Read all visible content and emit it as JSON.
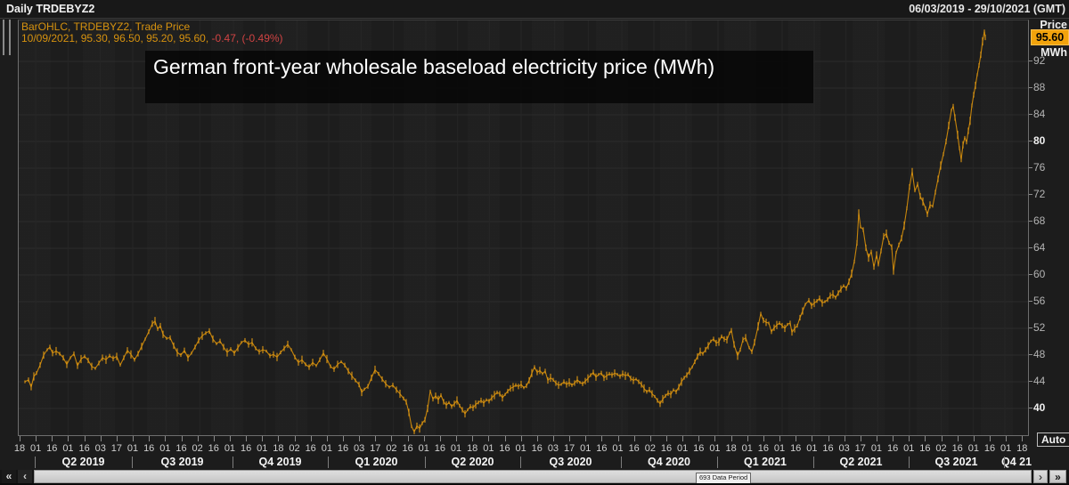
{
  "header": {
    "title": "Daily TRDEBYZ2",
    "date_range": "06/03/2019 - 29/10/2021 (GMT)"
  },
  "legend": {
    "line1": "BarOHLC, TRDEBYZ2, Trade Price",
    "line2_quote": "10/09/2021, 95.30, 96.50, 95.20, 95.60,",
    "line2_change": " -0.47, (-0.49%)"
  },
  "title_banner": "German front-year wholesale baseload electricity price (MWh)",
  "price_axis": {
    "caption_top": "Price",
    "last_price": "95.60",
    "unit": "MWh",
    "ticks": [
      92,
      88,
      84,
      80,
      76,
      72,
      68,
      64,
      60,
      56,
      52,
      48,
      44,
      40
    ],
    "bold_ticks": [
      80,
      40
    ],
    "auto_button": "Auto"
  },
  "x_axis": {
    "day_ticks": [
      "18",
      "01",
      "16",
      "01",
      "16",
      "03",
      "17",
      "01",
      "16",
      "01",
      "16",
      "02",
      "16",
      "01",
      "16",
      "01",
      "18",
      "02",
      "16",
      "01",
      "16",
      "03",
      "17",
      "02",
      "16",
      "01",
      "16",
      "01",
      "18",
      "01",
      "16",
      "01",
      "16",
      "03",
      "17",
      "01",
      "16",
      "01",
      "16",
      "02",
      "16",
      "01",
      "16",
      "01",
      "18",
      "01",
      "16",
      "01",
      "16",
      "01",
      "16",
      "03",
      "17",
      "01",
      "16",
      "01",
      "16",
      "02",
      "16",
      "01",
      "16",
      "01",
      "18"
    ],
    "quarters": [
      "Q2 2019",
      "Q3 2019",
      "Q4 2019",
      "Q1 2020",
      "Q2 2020",
      "Q3 2020",
      "Q4 2020",
      "Q1 2021",
      "Q2 2021",
      "Q3 2021",
      "Q4 21"
    ]
  },
  "scrollbar": {
    "far_left": "«",
    "left": "‹",
    "right": "›",
    "far_right": "»",
    "period_label": "693 Data Period"
  },
  "colors": {
    "series_line": "#c5840c",
    "series_bar": "#dd9713",
    "legend_amber": "#d6920f",
    "legend_red": "#d04343",
    "price_box_bg": "#f2a30c",
    "grid_h": "#2c2c2c",
    "grid_v": "#262626",
    "plot_bg": "#1d1d1d"
  },
  "chart_data": {
    "type": "line",
    "subtype": "daily OHLC bars (Trade Price)",
    "title": "German front-year wholesale baseload electricity price (MWh)",
    "instrument": "TRDEBYZ2",
    "interval": "Daily",
    "date_range": "06/03/2019 - 29/10/2021 (GMT)",
    "last_quote": {
      "date": "10/09/2021",
      "open": 95.3,
      "high": 96.5,
      "low": 95.2,
      "close": 95.6,
      "change": -0.47,
      "change_pct": "-0.49%"
    },
    "ylabel": "Price MWh",
    "ylim": [
      36,
      98
    ],
    "y_ticks": [
      40,
      44,
      48,
      52,
      56,
      60,
      64,
      68,
      72,
      76,
      80,
      84,
      88,
      92
    ],
    "legend_position": "top-left",
    "grid": true,
    "data_period_count": 693,
    "x_encoding": "plot pixel column; 39=Apr 2019, 368=Jan 2020, 805=Jan 2021, 1127=Oct 2021; series ends 10 Sep 2021",
    "points": [
      [
        27,
        44.0
      ],
      [
        31,
        44.3
      ],
      [
        34,
        43.2
      ],
      [
        37,
        44.8
      ],
      [
        40,
        45.3
      ],
      [
        44,
        46.5
      ],
      [
        48,
        48.0
      ],
      [
        52,
        48.8
      ],
      [
        55,
        49.2
      ],
      [
        58,
        48.3
      ],
      [
        62,
        48.6
      ],
      [
        66,
        48.2
      ],
      [
        70,
        47.6
      ],
      [
        74,
        46.6
      ],
      [
        78,
        47.6
      ],
      [
        82,
        48.2
      ],
      [
        86,
        46.4
      ],
      [
        90,
        47.4
      ],
      [
        94,
        47.8
      ],
      [
        98,
        47.2
      ],
      [
        102,
        46.3
      ],
      [
        106,
        46.0
      ],
      [
        110,
        46.8
      ],
      [
        114,
        47.6
      ],
      [
        118,
        47.3
      ],
      [
        122,
        47.9
      ],
      [
        126,
        47.5
      ],
      [
        130,
        47.8
      ],
      [
        134,
        46.5
      ],
      [
        138,
        47.6
      ],
      [
        142,
        48.7
      ],
      [
        146,
        48.1
      ],
      [
        150,
        47.3
      ],
      [
        154,
        48.2
      ],
      [
        158,
        49.3
      ],
      [
        162,
        50.4
      ],
      [
        166,
        51.5
      ],
      [
        170,
        52.7
      ],
      [
        173,
        53.1
      ],
      [
        176,
        51.9
      ],
      [
        179,
        52.4
      ],
      [
        182,
        51.1
      ],
      [
        186,
        50.5
      ],
      [
        190,
        50.6
      ],
      [
        194,
        49.4
      ],
      [
        198,
        48.4
      ],
      [
        202,
        48.0
      ],
      [
        206,
        48.7
      ],
      [
        210,
        47.6
      ],
      [
        214,
        48.3
      ],
      [
        218,
        49.2
      ],
      [
        222,
        50.2
      ],
      [
        226,
        50.9
      ],
      [
        230,
        51.3
      ],
      [
        234,
        51.6
      ],
      [
        238,
        50.4
      ],
      [
        242,
        49.7
      ],
      [
        246,
        50.1
      ],
      [
        250,
        49.2
      ],
      [
        254,
        48.4
      ],
      [
        258,
        48.9
      ],
      [
        262,
        48.3
      ],
      [
        266,
        49.1
      ],
      [
        270,
        49.9
      ],
      [
        274,
        50.2
      ],
      [
        278,
        49.6
      ],
      [
        282,
        49.9
      ],
      [
        286,
        49.0
      ],
      [
        290,
        48.5
      ],
      [
        294,
        48.8
      ],
      [
        298,
        48.6
      ],
      [
        302,
        47.9
      ],
      [
        306,
        48.1
      ],
      [
        310,
        47.7
      ],
      [
        314,
        48.4
      ],
      [
        318,
        49.0
      ],
      [
        322,
        49.6
      ],
      [
        326,
        48.8
      ],
      [
        330,
        47.7
      ],
      [
        334,
        46.9
      ],
      [
        338,
        47.3
      ],
      [
        342,
        46.6
      ],
      [
        346,
        46.2
      ],
      [
        350,
        46.9
      ],
      [
        354,
        46.4
      ],
      [
        358,
        47.3
      ],
      [
        362,
        48.3
      ],
      [
        366,
        47.4
      ],
      [
        370,
        46.3
      ],
      [
        374,
        45.9
      ],
      [
        378,
        46.6
      ],
      [
        382,
        47.0
      ],
      [
        386,
        46.5
      ],
      [
        390,
        45.6
      ],
      [
        394,
        44.9
      ],
      [
        398,
        44.2
      ],
      [
        402,
        43.6
      ],
      [
        405,
        42.4
      ],
      [
        408,
        42.9
      ],
      [
        412,
        43.3
      ],
      [
        416,
        44.6
      ],
      [
        420,
        45.8
      ],
      [
        424,
        45.2
      ],
      [
        428,
        44.4
      ],
      [
        432,
        43.7
      ],
      [
        436,
        43.2
      ],
      [
        440,
        43.5
      ],
      [
        444,
        42.8
      ],
      [
        448,
        42.2
      ],
      [
        452,
        41.5
      ],
      [
        455,
        41.0
      ],
      [
        458,
        39.4
      ],
      [
        461,
        37.3
      ],
      [
        464,
        36.5
      ],
      [
        467,
        37.4
      ],
      [
        470,
        37.0
      ],
      [
        473,
        37.8
      ],
      [
        476,
        38.3
      ],
      [
        479,
        40.0
      ],
      [
        482,
        42.6
      ],
      [
        485,
        41.4
      ],
      [
        488,
        41.9
      ],
      [
        491,
        41.3
      ],
      [
        494,
        42.0
      ],
      [
        497,
        41.0
      ],
      [
        500,
        40.5
      ],
      [
        503,
        40.9
      ],
      [
        506,
        40.3
      ],
      [
        509,
        40.7
      ],
      [
        512,
        41.2
      ],
      [
        515,
        40.4
      ],
      [
        518,
        39.8
      ],
      [
        521,
        39.2
      ],
      [
        524,
        39.8
      ],
      [
        527,
        40.3
      ],
      [
        530,
        40.1
      ],
      [
        533,
        40.6
      ],
      [
        536,
        40.9
      ],
      [
        539,
        41.2
      ],
      [
        542,
        40.8
      ],
      [
        545,
        41.3
      ],
      [
        548,
        41.1
      ],
      [
        551,
        41.6
      ],
      [
        554,
        42.0
      ],
      [
        557,
        42.4
      ],
      [
        560,
        42.2
      ],
      [
        563,
        41.6
      ],
      [
        566,
        42.1
      ],
      [
        569,
        42.6
      ],
      [
        572,
        43.0
      ],
      [
        575,
        43.2
      ],
      [
        578,
        43.5
      ],
      [
        581,
        43.3
      ],
      [
        584,
        43.6
      ],
      [
        587,
        43.1
      ],
      [
        590,
        43.4
      ],
      [
        593,
        44.2
      ],
      [
        596,
        45.3
      ],
      [
        599,
        46.2
      ],
      [
        602,
        45.4
      ],
      [
        605,
        45.7
      ],
      [
        608,
        45.2
      ],
      [
        611,
        45.6
      ],
      [
        614,
        44.2
      ],
      [
        617,
        44.6
      ],
      [
        620,
        44.3
      ],
      [
        623,
        43.8
      ],
      [
        626,
        43.5
      ],
      [
        629,
        43.6
      ],
      [
        632,
        44.0
      ],
      [
        635,
        43.6
      ],
      [
        638,
        43.9
      ],
      [
        641,
        43.5
      ],
      [
        644,
        43.8
      ],
      [
        647,
        44.3
      ],
      [
        650,
        43.9
      ],
      [
        653,
        43.7
      ],
      [
        656,
        44.1
      ],
      [
        659,
        44.5
      ],
      [
        662,
        45.0
      ],
      [
        665,
        45.4
      ],
      [
        668,
        44.7
      ],
      [
        671,
        45.1
      ],
      [
        674,
        45.3
      ],
      [
        677,
        44.6
      ],
      [
        680,
        44.9
      ],
      [
        683,
        45.2
      ],
      [
        686,
        45.0
      ],
      [
        689,
        45.3
      ],
      [
        692,
        45.1
      ],
      [
        695,
        44.8
      ],
      [
        698,
        45.2
      ],
      [
        701,
        44.9
      ],
      [
        704,
        45.1
      ],
      [
        707,
        44.5
      ],
      [
        710,
        44.2
      ],
      [
        713,
        44.4
      ],
      [
        716,
        44.0
      ],
      [
        719,
        43.6
      ],
      [
        722,
        43.0
      ],
      [
        725,
        42.5
      ],
      [
        728,
        42.8
      ],
      [
        731,
        42.2
      ],
      [
        734,
        41.8
      ],
      [
        737,
        41.2
      ],
      [
        740,
        40.7
      ],
      [
        743,
        41.4
      ],
      [
        746,
        41.9
      ],
      [
        749,
        42.3
      ],
      [
        752,
        42.1
      ],
      [
        755,
        42.8
      ],
      [
        758,
        42.5
      ],
      [
        761,
        43.2
      ],
      [
        764,
        44.0
      ],
      [
        767,
        44.6
      ],
      [
        770,
        45.0
      ],
      [
        773,
        45.6
      ],
      [
        776,
        46.2
      ],
      [
        779,
        47.0
      ],
      [
        782,
        47.8
      ],
      [
        785,
        48.5
      ],
      [
        788,
        48.2
      ],
      [
        791,
        48.8
      ],
      [
        794,
        49.4
      ],
      [
        797,
        50.1
      ],
      [
        800,
        50.4
      ],
      [
        803,
        49.8
      ],
      [
        806,
        50.0
      ],
      [
        809,
        50.8
      ],
      [
        812,
        50.4
      ],
      [
        815,
        50.3
      ],
      [
        818,
        51.3
      ],
      [
        820,
        51.7
      ],
      [
        823,
        49.6
      ],
      [
        827,
        47.9
      ],
      [
        830,
        48.8
      ],
      [
        833,
        50.3
      ],
      [
        836,
        50.6
      ],
      [
        840,
        49.1
      ],
      [
        843,
        48.5
      ],
      [
        846,
        49.9
      ],
      [
        850,
        52.3
      ],
      [
        853,
        54.2
      ],
      [
        856,
        53.2
      ],
      [
        859,
        52.9
      ],
      [
        862,
        52.8
      ],
      [
        865,
        51.5
      ],
      [
        868,
        52.1
      ],
      [
        871,
        52.5
      ],
      [
        874,
        52.8
      ],
      [
        877,
        52.4
      ],
      [
        880,
        52.0
      ],
      [
        883,
        52.6
      ],
      [
        886,
        52.8
      ],
      [
        888,
        51.4
      ],
      [
        891,
        52.0
      ],
      [
        894,
        52.4
      ],
      [
        897,
        53.6
      ],
      [
        900,
        54.6
      ],
      [
        903,
        55.6
      ],
      [
        907,
        56.2
      ],
      [
        910,
        55.4
      ],
      [
        913,
        55.8
      ],
      [
        916,
        56.1
      ],
      [
        919,
        56.5
      ],
      [
        922,
        55.8
      ],
      [
        925,
        56.0
      ],
      [
        928,
        56.3
      ],
      [
        931,
        56.9
      ],
      [
        934,
        57.1
      ],
      [
        937,
        56.6
      ],
      [
        940,
        57.3
      ],
      [
        943,
        57.9
      ],
      [
        946,
        58.4
      ],
      [
        949,
        58.0
      ],
      [
        952,
        59.0
      ],
      [
        955,
        60.2
      ],
      [
        958,
        62.0
      ],
      [
        961,
        64.8
      ],
      [
        963,
        69.3
      ],
      [
        965,
        67.2
      ],
      [
        968,
        66.8
      ],
      [
        971,
        64.1
      ],
      [
        974,
        62.6
      ],
      [
        977,
        63.5
      ],
      [
        980,
        61.2
      ],
      [
        983,
        63.0
      ],
      [
        985,
        61.5
      ],
      [
        988,
        63.6
      ],
      [
        991,
        65.8
      ],
      [
        994,
        66.2
      ],
      [
        997,
        64.8
      ],
      [
        1000,
        64.2
      ],
      [
        1002,
        60.6
      ],
      [
        1005,
        63.4
      ],
      [
        1008,
        64.5
      ],
      [
        1011,
        65.5
      ],
      [
        1014,
        67.4
      ],
      [
        1017,
        70.0
      ],
      [
        1020,
        73.2
      ],
      [
        1023,
        75.5
      ],
      [
        1026,
        72.6
      ],
      [
        1029,
        73.6
      ],
      [
        1032,
        71.8
      ],
      [
        1035,
        71.0
      ],
      [
        1038,
        70.0
      ],
      [
        1040,
        69.1
      ],
      [
        1043,
        70.5
      ],
      [
        1046,
        70.3
      ],
      [
        1049,
        72.4
      ],
      [
        1052,
        74.4
      ],
      [
        1055,
        76.4
      ],
      [
        1058,
        78.1
      ],
      [
        1061,
        80.0
      ],
      [
        1064,
        82.4
      ],
      [
        1067,
        84.7
      ],
      [
        1069,
        85.3
      ],
      [
        1071,
        83.6
      ],
      [
        1074,
        81.0
      ],
      [
        1076,
        79.0
      ],
      [
        1078,
        77.3
      ],
      [
        1080,
        79.5
      ],
      [
        1082,
        80.6
      ],
      [
        1084,
        79.9
      ],
      [
        1086,
        81.6
      ],
      [
        1088,
        83.1
      ],
      [
        1090,
        85.4
      ],
      [
        1092,
        87.0
      ],
      [
        1094,
        88.4
      ],
      [
        1096,
        90.0
      ],
      [
        1098,
        91.4
      ],
      [
        1100,
        93.0
      ],
      [
        1102,
        95.0
      ],
      [
        1104,
        96.5
      ],
      [
        1105,
        95.6
      ]
    ]
  }
}
